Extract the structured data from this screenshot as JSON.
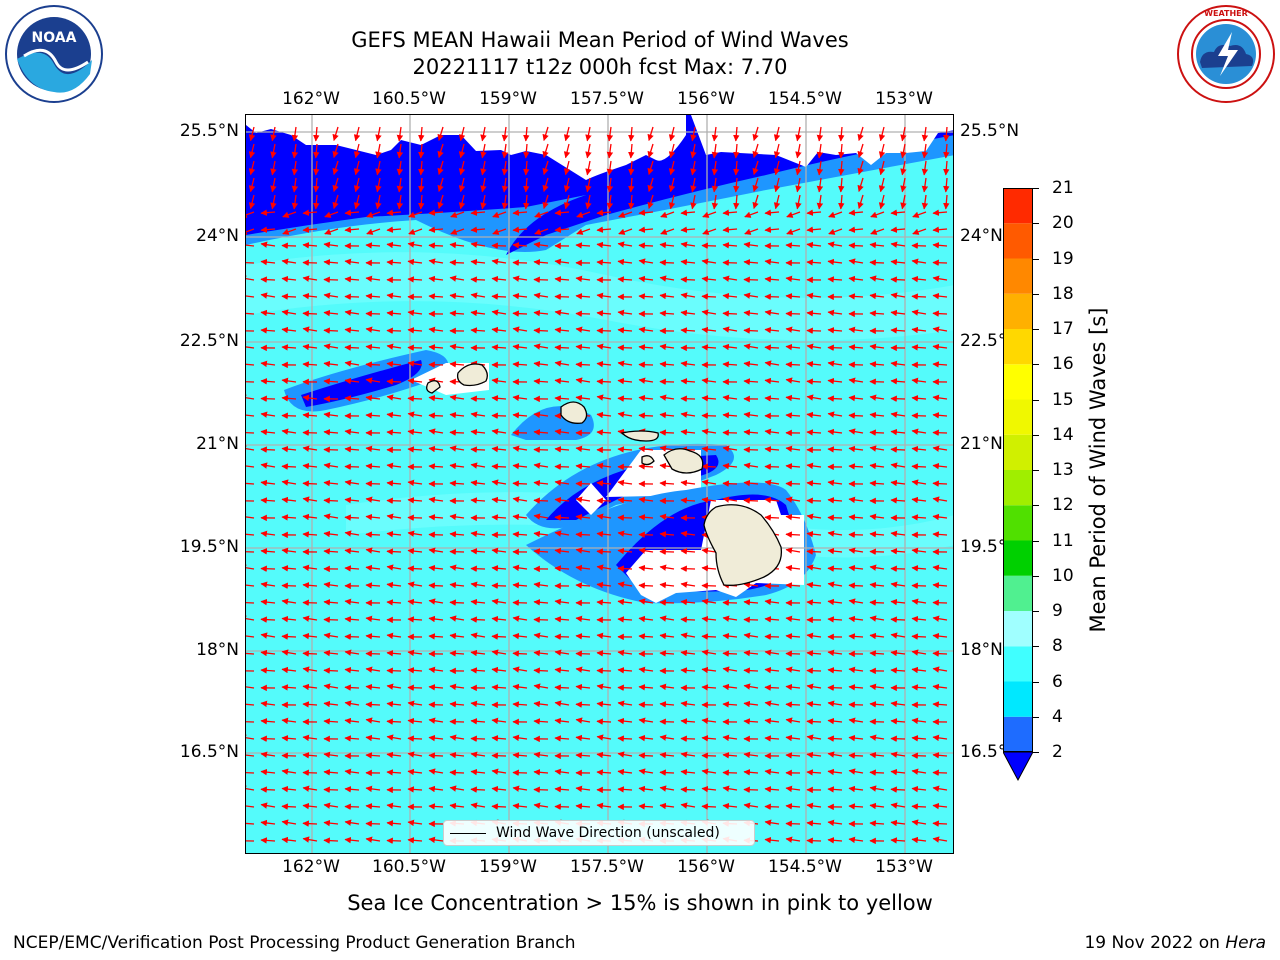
{
  "header": {
    "title_line1": "GEFS MEAN Hawaii Mean Period of Wind Waves",
    "title_line2": "20221117 t12z 000h fcst   Max: 7.70"
  },
  "logos": {
    "left": "NOAA",
    "right": "NATIONAL WEATHER SERVICE"
  },
  "map": {
    "lon_ticks": [
      "162°W",
      "160.5°W",
      "159°W",
      "157.5°W",
      "156°W",
      "154.5°W",
      "153°W"
    ],
    "lat_ticks_left": [
      "25.5°N",
      "24°N",
      "22.5°N",
      "21°N",
      "19.5°N",
      "18°N",
      "16.5°N"
    ],
    "lat_ticks_right": [
      "25.5°N",
      "24°N",
      "22.5°N",
      "21°N",
      "19.5°N",
      "18°N",
      "16.5°N"
    ],
    "legend": "Wind Wave Direction (unscaled)",
    "colors": {
      "ocean_light": "#54fbfb",
      "ocean_pale": "#66ffff",
      "mid": "#1e96ff",
      "deep": "#0000ff",
      "land": "#f0ecd8",
      "arrow": "#ff0000",
      "grid": "#b0b0b0"
    }
  },
  "colorbar": {
    "label": "Mean Period of Wind Waves [s]",
    "ticks": [
      "2",
      "4",
      "6",
      "8",
      "9",
      "10",
      "11",
      "12",
      "13",
      "14",
      "15",
      "16",
      "17",
      "18",
      "19",
      "20",
      "21"
    ],
    "colors": [
      "#1e6cff",
      "#00e8ff",
      "#40ffff",
      "#a0ffff",
      "#50f090",
      "#00d000",
      "#50e000",
      "#a0ee00",
      "#d0f000",
      "#f0f800",
      "#ffff00",
      "#ffd800",
      "#ffb000",
      "#ff8800",
      "#ff5a00",
      "#ff2a00"
    ],
    "under_color": "#0000ff"
  },
  "note": "Sea Ice Concentration > 15% is shown in pink to yellow",
  "footer": {
    "left": "NCEP/EMC/Verification Post Processing Product Generation Branch",
    "right_prefix": "19 Nov 2022 on ",
    "right_italic": "Hera"
  }
}
